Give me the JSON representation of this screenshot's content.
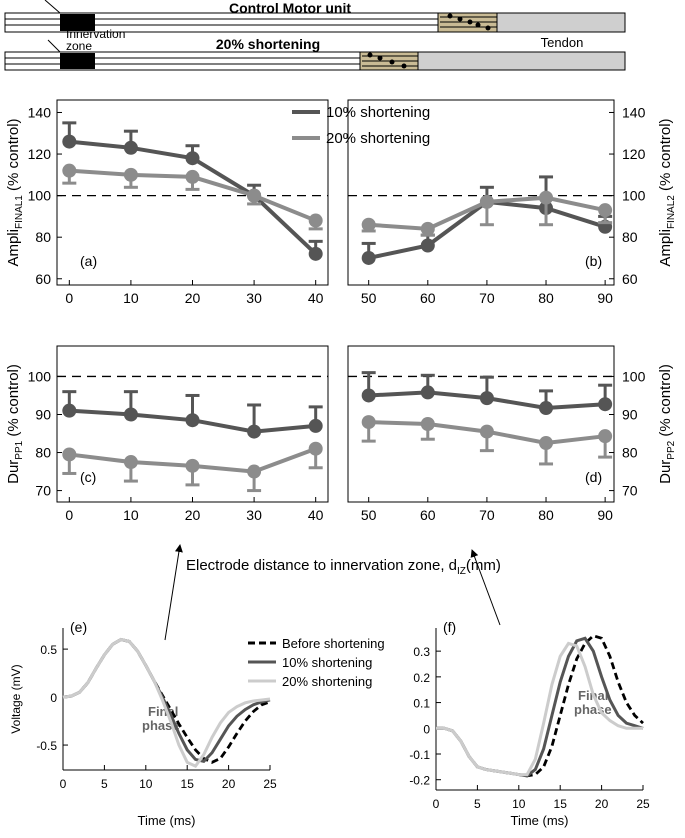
{
  "diagram": {
    "control_title": "Control Motor unit",
    "innervation_zone": [
      "Innervation",
      "zone"
    ],
    "shortening_title": "20% shortening",
    "tendon": "Tendon"
  },
  "shared": {
    "x_label": "Electrode distance to innervation zone, d",
    "x_label_sub": "IZ",
    "x_label_tail": "(mm)"
  },
  "chart_data": [
    {
      "type": "line",
      "markers": true,
      "x": [
        0,
        10,
        20,
        30,
        40
      ],
      "xlim": [
        -2,
        42
      ],
      "xticks": [
        0,
        10,
        20,
        30,
        40
      ],
      "ylim": [
        57,
        146
      ],
      "yticks": [
        60,
        80,
        100,
        120,
        140
      ],
      "y_axis_side": "left",
      "reference_line": 100,
      "y_label": {
        "main": "Ampli",
        "sub": "FINAL1",
        "tail": " (% control)"
      },
      "annotations": [
        {
          "text": "(a)"
        }
      ],
      "legend": true,
      "series": [
        {
          "name": "10% shortening",
          "color": "#555555",
          "error_direction": "up",
          "values": [
            126,
            123,
            118,
            100,
            72
          ],
          "errors": [
            9,
            8,
            6,
            5,
            6
          ]
        },
        {
          "name": "20% shortening",
          "color": "#8c8c8c",
          "error_direction": "down",
          "values": [
            112,
            110,
            109,
            100,
            88
          ],
          "errors": [
            6,
            6,
            6,
            4,
            4
          ]
        }
      ]
    },
    {
      "type": "line",
      "markers": true,
      "x": [
        50,
        60,
        70,
        80,
        90
      ],
      "xlim": [
        46.5,
        91.5
      ],
      "xticks": [
        50,
        60,
        70,
        80,
        90
      ],
      "ylim": [
        57,
        146
      ],
      "yticks": [
        60,
        80,
        100,
        120,
        140
      ],
      "y_axis_side": "right",
      "reference_line": 100,
      "y_label": {
        "main": "Ampli",
        "sub": "FINAL2",
        "tail": " (% control)"
      },
      "annotations": [
        {
          "text": "(b)"
        }
      ],
      "series": [
        {
          "color": "#555555",
          "error_direction": "up",
          "values": [
            70,
            76,
            97,
            94,
            85
          ],
          "errors": [
            7,
            5,
            7,
            15,
            5
          ]
        },
        {
          "color": "#8c8c8c",
          "error_direction": "down",
          "values": [
            86,
            84,
            97,
            99,
            93
          ],
          "errors": [
            3,
            3,
            11,
            13,
            6
          ]
        }
      ]
    },
    {
      "type": "line",
      "markers": true,
      "x": [
        0,
        10,
        20,
        30,
        40
      ],
      "xlim": [
        -2,
        42
      ],
      "xticks": [
        0,
        10,
        20,
        30,
        40
      ],
      "ylim": [
        67,
        108
      ],
      "yticks": [
        70,
        80,
        90,
        100
      ],
      "y_axis_side": "left",
      "reference_line": 100,
      "y_label": {
        "main": "Dur",
        "sub": "PP1",
        "tail": " (% control)"
      },
      "annotations": [
        {
          "text": "(c)"
        }
      ],
      "series": [
        {
          "color": "#555555",
          "error_direction": "up",
          "values": [
            91,
            90,
            88.5,
            85.5,
            87
          ],
          "errors": [
            5,
            6,
            6.5,
            7,
            5
          ]
        },
        {
          "color": "#8c8c8c",
          "error_direction": "down",
          "values": [
            79.5,
            77.5,
            76.5,
            75,
            81
          ],
          "errors": [
            5,
            5,
            5,
            5,
            5
          ]
        }
      ]
    },
    {
      "type": "line",
      "markers": true,
      "x": [
        50,
        60,
        70,
        80,
        90
      ],
      "xlim": [
        46.5,
        91.5
      ],
      "xticks": [
        50,
        60,
        70,
        80,
        90
      ],
      "ylim": [
        67,
        108
      ],
      "yticks": [
        70,
        80,
        90,
        100
      ],
      "y_axis_side": "right",
      "reference_line": 100,
      "y_label": {
        "main": "Dur",
        "sub": "PP2",
        "tail": " (% control)"
      },
      "annotations": [
        {
          "text": "(d)"
        }
      ],
      "series": [
        {
          "color": "#555555",
          "error_direction": "up",
          "values": [
            95,
            95.8,
            94.3,
            91.7,
            92.7
          ],
          "errors": [
            6,
            4.5,
            5.5,
            4.5,
            5
          ]
        },
        {
          "color": "#8c8c8c",
          "error_direction": "down",
          "values": [
            88,
            87.5,
            85.5,
            82.5,
            84.3
          ],
          "errors": [
            5,
            4,
            5,
            5.5,
            5.5
          ]
        }
      ]
    },
    {
      "type": "line",
      "markers": false,
      "x": [
        0,
        1,
        2,
        3,
        4,
        5,
        6,
        7,
        8,
        9,
        10,
        11,
        12,
        13,
        14,
        15,
        16,
        17,
        18,
        19,
        20,
        21,
        22,
        23,
        24,
        25
      ],
      "xlim": [
        0,
        25
      ],
      "xticks": [
        0,
        5,
        10,
        15,
        20,
        25
      ],
      "ylim": [
        -0.76,
        0.72
      ],
      "yticks": [
        -0.5,
        0,
        0.5
      ],
      "y_axis_side": "left",
      "y_label": {
        "main": "Voltage (mV)"
      },
      "x_label": "Time  (ms)",
      "annotations": [
        {
          "text": "(e)"
        },
        {
          "text": "Final"
        },
        {
          "text": "phase"
        }
      ],
      "legend": true,
      "series": [
        {
          "name": "Before shortening",
          "color": "#000000",
          "dash": true,
          "values": [
            0,
            0.01,
            0.05,
            0.15,
            0.3,
            0.44,
            0.55,
            0.6,
            0.58,
            0.48,
            0.33,
            0.17,
            0.02,
            -0.13,
            -0.28,
            -0.42,
            -0.55,
            -0.64,
            -0.68,
            -0.64,
            -0.52,
            -0.38,
            -0.25,
            -0.15,
            -0.08,
            -0.05
          ]
        },
        {
          "name": "10% shortening",
          "color": "#555555",
          "values": [
            0,
            0.01,
            0.05,
            0.15,
            0.3,
            0.44,
            0.55,
            0.6,
            0.58,
            0.48,
            0.33,
            0.17,
            0,
            -0.18,
            -0.38,
            -0.55,
            -0.65,
            -0.67,
            -0.58,
            -0.44,
            -0.3,
            -0.2,
            -0.13,
            -0.08,
            -0.05,
            -0.03
          ]
        },
        {
          "name": "20% shortening",
          "color": "#cccccc",
          "values": [
            0,
            0.01,
            0.05,
            0.15,
            0.3,
            0.44,
            0.55,
            0.6,
            0.58,
            0.48,
            0.33,
            0.17,
            -0.03,
            -0.25,
            -0.5,
            -0.68,
            -0.72,
            -0.6,
            -0.42,
            -0.27,
            -0.16,
            -0.1,
            -0.06,
            -0.04,
            -0.03,
            -0.02
          ]
        }
      ]
    },
    {
      "type": "line",
      "markers": false,
      "x": [
        0,
        1,
        2,
        3,
        4,
        5,
        6,
        7,
        8,
        9,
        10,
        11,
        12,
        13,
        14,
        15,
        16,
        17,
        18,
        19,
        20,
        21,
        22,
        23,
        24,
        25
      ],
      "xlim": [
        0,
        25
      ],
      "xticks": [
        0,
        5,
        10,
        15,
        20,
        25
      ],
      "ylim": [
        -0.24,
        0.39
      ],
      "yticks": [
        -0.2,
        -0.1,
        0,
        0.1,
        0.2,
        0.3
      ],
      "y_axis_side": "left",
      "x_label": "Time  (ms)",
      "annotations": [
        {
          "text": "(f)"
        },
        {
          "text": "Final"
        },
        {
          "text": "phase"
        }
      ],
      "series": [
        {
          "color": "#000000",
          "dash": true,
          "values": [
            0,
            0,
            -0.01,
            -0.05,
            -0.11,
            -0.15,
            -0.16,
            -0.165,
            -0.17,
            -0.175,
            -0.18,
            -0.185,
            -0.18,
            -0.15,
            -0.07,
            0.05,
            0.17,
            0.27,
            0.33,
            0.36,
            0.35,
            0.28,
            0.18,
            0.1,
            0.05,
            0.02
          ]
        },
        {
          "color": "#555555",
          "values": [
            0,
            0,
            -0.01,
            -0.05,
            -0.11,
            -0.15,
            -0.16,
            -0.165,
            -0.17,
            -0.175,
            -0.18,
            -0.185,
            -0.16,
            -0.08,
            0.05,
            0.18,
            0.28,
            0.34,
            0.35,
            0.3,
            0.2,
            0.11,
            0.05,
            0.02,
            0.01,
            0
          ]
        },
        {
          "color": "#cccccc",
          "values": [
            0,
            0,
            -0.01,
            -0.05,
            -0.11,
            -0.15,
            -0.16,
            -0.165,
            -0.17,
            -0.175,
            -0.18,
            -0.18,
            -0.12,
            0.02,
            0.17,
            0.28,
            0.33,
            0.32,
            0.24,
            0.13,
            0.06,
            0.03,
            0.01,
            0,
            0,
            0
          ]
        }
      ]
    }
  ]
}
